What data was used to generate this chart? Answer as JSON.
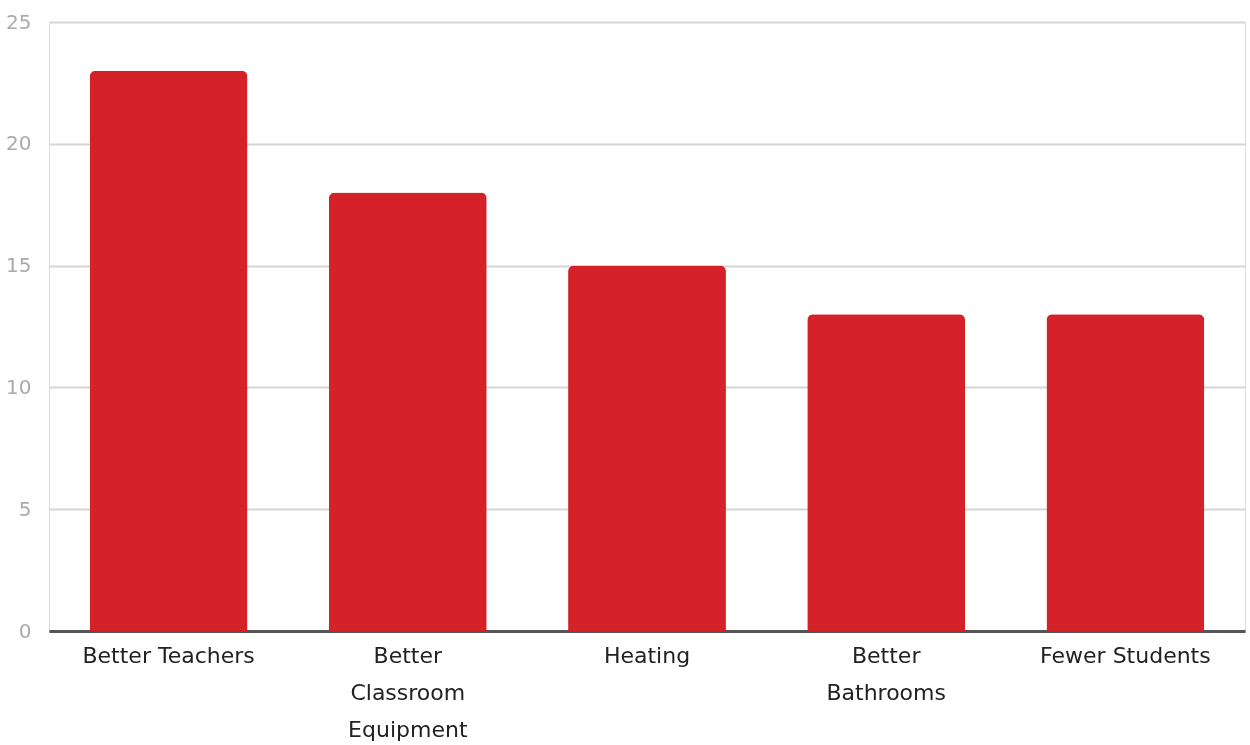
{
  "chart_data": {
    "type": "bar",
    "categories": [
      "Better Teachers",
      "Better Classroom Equipment",
      "Heating",
      "Better Bathrooms",
      "Fewer Students"
    ],
    "values": [
      23,
      18,
      15,
      13,
      13
    ],
    "color": "#d52128",
    "ylim": [
      0,
      25
    ],
    "yticks": [
      0,
      5,
      10,
      15,
      20,
      25
    ],
    "grid": "y"
  }
}
